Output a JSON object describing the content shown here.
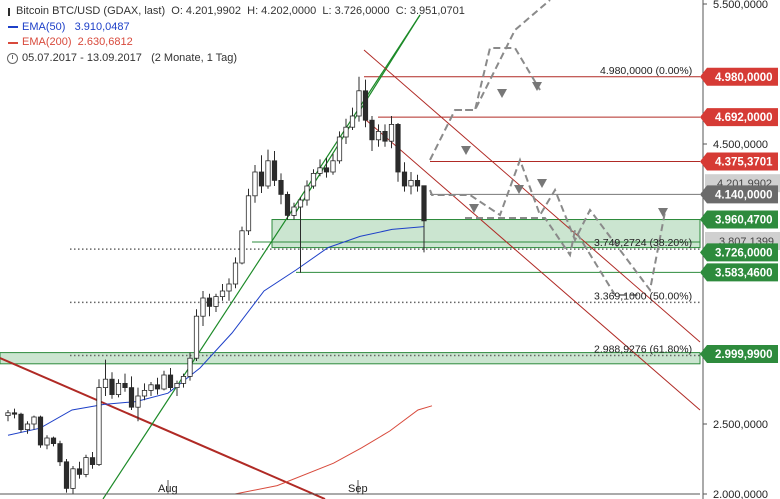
{
  "chart_data": {
    "type": "candlestick",
    "instrument": "Bitcoin BTC/USD (GDAX, last)",
    "ohlc_header": {
      "open": "O: 4.201,9902",
      "high": "H: 4.202,0000",
      "low": "L: 3.726,0000",
      "close": "C: 3.951,0701"
    },
    "indicators": [
      {
        "name": "EMA(50)",
        "value": "3.910,0487",
        "color": "#1e40c8"
      },
      {
        "name": "EMA(200)",
        "value": "2.630,6812",
        "color": "#d84a3c"
      }
    ],
    "period": "05.07.2017 - 13.09.2017",
    "period_note": "(2 Monate, 1 Tag)",
    "x_tick_labels": [
      "Aug",
      "Sep"
    ],
    "y_axis": {
      "range": [
        2000000,
        5500000
      ],
      "ticks": [
        "2.000,0000",
        "2.500,0000",
        "4.500,0000",
        "5.500,0000"
      ]
    },
    "price_tags": [
      {
        "text": "4.980,0000",
        "value": 4980000,
        "fill": "#d63b35"
      },
      {
        "text": "4.692,0000",
        "value": 4692000,
        "fill": "#d63b35"
      },
      {
        "text": "4.375,3701",
        "value": 4375370,
        "fill": "#d63b35"
      },
      {
        "text": "4.140,0000",
        "value": 4140000,
        "fill": "#6b6b6b"
      },
      {
        "text": "3.960,4700",
        "value": 3960470,
        "fill": "#2e8b3d"
      },
      {
        "text": "3.726,0000",
        "value": 3726000,
        "fill": "#2e8b3d"
      },
      {
        "text": "3.583,4600",
        "value": 3583460,
        "fill": "#2e8b3d"
      },
      {
        "text": "2.999,9900",
        "value": 2999990,
        "fill": "#2e8b3d"
      }
    ],
    "fib_labels": [
      {
        "text": "4.980,0000 (0.00%)",
        "value": 4980000
      },
      {
        "text": "3.749,2724 (38.20%)",
        "value": 3749272
      },
      {
        "text": "3.369,1000 (50.00%)",
        "value": 3369100
      },
      {
        "text": "2.988,9276 (61.80%)",
        "value": 2988928
      }
    ],
    "support_zones": [
      {
        "from": 3760000,
        "to": 3960470
      },
      {
        "from": 2930000,
        "to": 3010000
      }
    ],
    "candles": [
      [
        2560000,
        2600000,
        2520000,
        2580000
      ],
      [
        2580000,
        2610000,
        2540000,
        2570000
      ],
      [
        2570000,
        2580000,
        2440000,
        2460000
      ],
      [
        2460000,
        2520000,
        2430000,
        2500000
      ],
      [
        2500000,
        2560000,
        2460000,
        2550000
      ],
      [
        2550000,
        2560000,
        2330000,
        2350000
      ],
      [
        2350000,
        2420000,
        2320000,
        2400000
      ],
      [
        2400000,
        2410000,
        2340000,
        2360000
      ],
      [
        2360000,
        2380000,
        2200000,
        2230000
      ],
      [
        2230000,
        2250000,
        2010000,
        2040000
      ],
      [
        2040000,
        2200000,
        2000000,
        2180000
      ],
      [
        2180000,
        2230000,
        2110000,
        2140000
      ],
      [
        2140000,
        2280000,
        2120000,
        2260000
      ],
      [
        2260000,
        2300000,
        2180000,
        2210000
      ],
      [
        2210000,
        2820000,
        2200000,
        2760000
      ],
      [
        2760000,
        2960000,
        2700000,
        2820000
      ],
      [
        2820000,
        2870000,
        2680000,
        2710000
      ],
      [
        2710000,
        2820000,
        2690000,
        2790000
      ],
      [
        2790000,
        2860000,
        2730000,
        2760000
      ],
      [
        2760000,
        2840000,
        2600000,
        2620000
      ],
      [
        2620000,
        2760000,
        2520000,
        2700000
      ],
      [
        2700000,
        2790000,
        2670000,
        2740000
      ],
      [
        2740000,
        2800000,
        2700000,
        2780000
      ],
      [
        2780000,
        2830000,
        2710000,
        2750000
      ],
      [
        2750000,
        2880000,
        2740000,
        2850000
      ],
      [
        2850000,
        2900000,
        2740000,
        2760000
      ],
      [
        2760000,
        2810000,
        2700000,
        2790000
      ],
      [
        2790000,
        2860000,
        2760000,
        2840000
      ],
      [
        2840000,
        3010000,
        2810000,
        2970000
      ],
      [
        2970000,
        3320000,
        2950000,
        3270000
      ],
      [
        3270000,
        3450000,
        3200000,
        3400000
      ],
      [
        3400000,
        3430000,
        3270000,
        3340000
      ],
      [
        3340000,
        3430000,
        3300000,
        3410000
      ],
      [
        3410000,
        3500000,
        3380000,
        3450000
      ],
      [
        3450000,
        3540000,
        3380000,
        3500000
      ],
      [
        3500000,
        3690000,
        3470000,
        3650000
      ],
      [
        3650000,
        3910000,
        3640000,
        3880000
      ],
      [
        3880000,
        4180000,
        3850000,
        4130000
      ],
      [
        4130000,
        4350000,
        4080000,
        4300000
      ],
      [
        4300000,
        4420000,
        4150000,
        4200000
      ],
      [
        4200000,
        4460000,
        4180000,
        4380000
      ],
      [
        4380000,
        4450000,
        4200000,
        4240000
      ],
      [
        4240000,
        4290000,
        4070000,
        4140000
      ],
      [
        4140000,
        4160000,
        3960000,
        3990000
      ],
      [
        3990000,
        4080000,
        3960000,
        4050000
      ],
      [
        4050000,
        4120000,
        3580000,
        4100000
      ],
      [
        4100000,
        4240000,
        4060000,
        4200000
      ],
      [
        4200000,
        4320000,
        4180000,
        4290000
      ],
      [
        4290000,
        4390000,
        4270000,
        4330000
      ],
      [
        4330000,
        4400000,
        4260000,
        4300000
      ],
      [
        4300000,
        4430000,
        4280000,
        4380000
      ],
      [
        4380000,
        4590000,
        4360000,
        4550000
      ],
      [
        4550000,
        4680000,
        4500000,
        4620000
      ],
      [
        4620000,
        4760000,
        4600000,
        4700000
      ],
      [
        4700000,
        4980000,
        4660000,
        4880000
      ],
      [
        4880000,
        4960000,
        4620000,
        4670000
      ],
      [
        4670000,
        4700000,
        4450000,
        4530000
      ],
      [
        4530000,
        4640000,
        4480000,
        4590000
      ],
      [
        4590000,
        4640000,
        4480000,
        4520000
      ],
      [
        4520000,
        4700000,
        4470000,
        4640000
      ],
      [
        4640000,
        4650000,
        4230000,
        4300000
      ],
      [
        4300000,
        4370000,
        4160000,
        4200000
      ],
      [
        4200000,
        4300000,
        4140000,
        4240000
      ],
      [
        4240000,
        4280000,
        4160000,
        4200000
      ],
      [
        4201990,
        4202000,
        3726000,
        3951070
      ]
    ],
    "ema50": [
      [
        0,
        2420000
      ],
      [
        20,
        2470000
      ],
      [
        40,
        2600000
      ],
      [
        60,
        2640000
      ],
      [
        80,
        2660000
      ],
      [
        100,
        2720000
      ],
      [
        120,
        2900000
      ],
      [
        140,
        3150000
      ],
      [
        160,
        3450000
      ],
      [
        180,
        3600000
      ],
      [
        200,
        3760000
      ],
      [
        220,
        3840000
      ],
      [
        240,
        3890000
      ],
      [
        260,
        3910000
      ]
    ],
    "ema200": [
      [
        130,
        2000000
      ],
      [
        160,
        2060000
      ],
      [
        200,
        2220000
      ],
      [
        220,
        2330000
      ],
      [
        240,
        2450000
      ],
      [
        260,
        2600000
      ],
      [
        270,
        2630000
      ]
    ]
  }
}
